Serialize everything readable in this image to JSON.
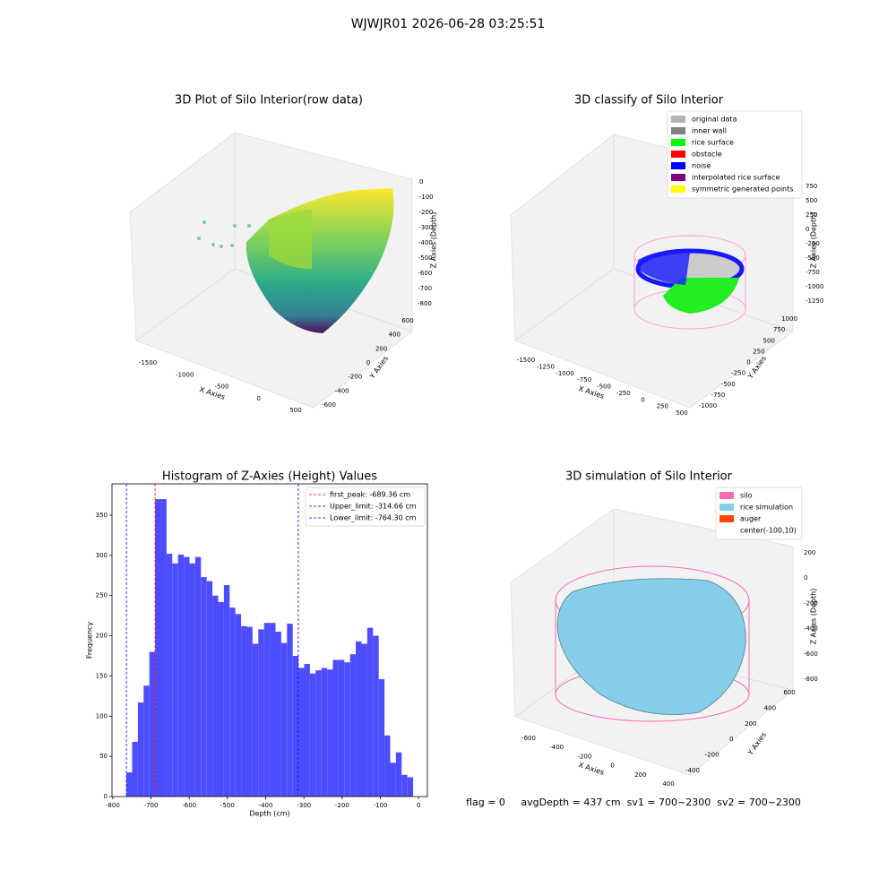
{
  "title": "WJWJR01 2026-06-28 03:25:51",
  "footer": "flag = 0     avgDepth = 437 cm  sv1 = 700~2300  sv2 = 700~2300",
  "chart_data": [
    {
      "type": "scatter3d",
      "title": "3D Plot of Silo Interior(row data)",
      "xlabel": "X Axies",
      "ylabel": "Y Axies",
      "zlabel": "Z Axies (Depth)",
      "xticks": [
        -1500,
        -1000,
        -500,
        0,
        500
      ],
      "yticks": [
        -600,
        -400,
        -200,
        0,
        200,
        400,
        600
      ],
      "zticks": [
        0,
        -100,
        -200,
        -300,
        -400,
        -500,
        -600,
        -700,
        -800
      ]
    },
    {
      "type": "scatter3d",
      "title": "3D classify of Silo Interior",
      "xlabel": "X Axies",
      "ylabel": "Y Axies",
      "zlabel": "Z Axies (Depth)",
      "xticks": [
        -1500,
        -1250,
        -1000,
        -750,
        -500,
        -250,
        0,
        250,
        500
      ],
      "yticks": [
        -1000,
        -750,
        -500,
        -250,
        0,
        250,
        500,
        750,
        1000
      ],
      "zticks": [
        750,
        500,
        250,
        0,
        -250,
        -500,
        -750,
        -1000,
        -1250
      ],
      "legend": [
        {
          "name": "original data",
          "color": "#b3b3b3"
        },
        {
          "name": "inner wall",
          "color": "#808080"
        },
        {
          "name": "rice surface",
          "color": "#00ff00"
        },
        {
          "name": "obstacle",
          "color": "#ff0000"
        },
        {
          "name": "noise",
          "color": "#0000ff"
        },
        {
          "name": "interpolated rice surface",
          "color": "#800080"
        },
        {
          "name": "symmetric generated points",
          "color": "#ffff00"
        }
      ]
    },
    {
      "type": "histogram",
      "title": "Histogram of Z-Axies (Height) Values",
      "xlabel": "Depth (cm)",
      "ylabel": "Frequency",
      "color": "#4d4dff",
      "bins": [
        -764.3,
        -749.3,
        -734.3,
        -719.3,
        -704.3,
        -689.3,
        -674.3,
        -659.3,
        -644.3,
        -629.3,
        -614.3,
        -599.3,
        -584.3,
        -569.3,
        -554.3,
        -539.3,
        -524.3,
        -509.3,
        -494.3,
        -479.3,
        -464.3,
        -449.3,
        -434.3,
        -419.3,
        -404.3,
        -389.3,
        -374.3,
        -359.3,
        -344.3,
        -329.3,
        -314.3,
        -299.3,
        -284.3,
        -269.3,
        -254.3,
        -239.3,
        -224.3,
        -209.3,
        -194.3,
        -179.3,
        -164.3,
        -149.3,
        -134.3,
        -119.3,
        -104.3,
        -89.3,
        -74.3,
        -59.3,
        -44.3,
        -29.3,
        -14.3
      ],
      "counts": [
        30,
        68,
        117,
        138,
        180,
        370,
        370,
        302,
        290,
        301,
        298,
        290,
        298,
        273,
        268,
        250,
        242,
        263,
        235,
        227,
        212,
        211,
        190,
        208,
        216,
        216,
        205,
        191,
        215,
        175,
        160,
        165,
        153,
        157,
        160,
        158,
        170,
        170,
        167,
        177,
        193,
        190,
        210,
        200,
        146,
        76,
        42,
        55,
        27,
        24
      ],
      "xlim": [
        -802,
        23
      ],
      "ylim": [
        0,
        389
      ],
      "xticks": [
        -800,
        -700,
        -600,
        -500,
        -400,
        -300,
        -200,
        -100,
        0
      ],
      "yticks": [
        0,
        50,
        100,
        150,
        200,
        250,
        300,
        350
      ],
      "vlines": [
        {
          "label": "first_peak: -689.36 cm",
          "value": -689.36,
          "color": "#ff0000"
        },
        {
          "label": "Upper_limit: -314.66 cm",
          "value": -314.66,
          "color": "#0000ff"
        },
        {
          "label": "Lower_limit: -764.30 cm",
          "value": -764.3,
          "color": "#0000ff"
        }
      ]
    },
    {
      "type": "surface3d",
      "title": "3D simulation of Silo Interior",
      "xlabel": "X Axies",
      "ylabel": "Y Axies",
      "zlabel": "Z Axies (Depth)",
      "xticks": [
        -600,
        -400,
        -200,
        0,
        200,
        400
      ],
      "yticks": [
        -400,
        -200,
        0,
        200,
        400,
        600
      ],
      "zticks": [
        200,
        0,
        -200,
        -400,
        -600,
        -800
      ],
      "legend": [
        {
          "name": "silo",
          "color": "#ff69b4"
        },
        {
          "name": "rice simulation",
          "color": "#87ceeb"
        },
        {
          "name": "auger",
          "color": "#ff4500"
        },
        {
          "name": "center(-100,10)"
        }
      ]
    }
  ]
}
